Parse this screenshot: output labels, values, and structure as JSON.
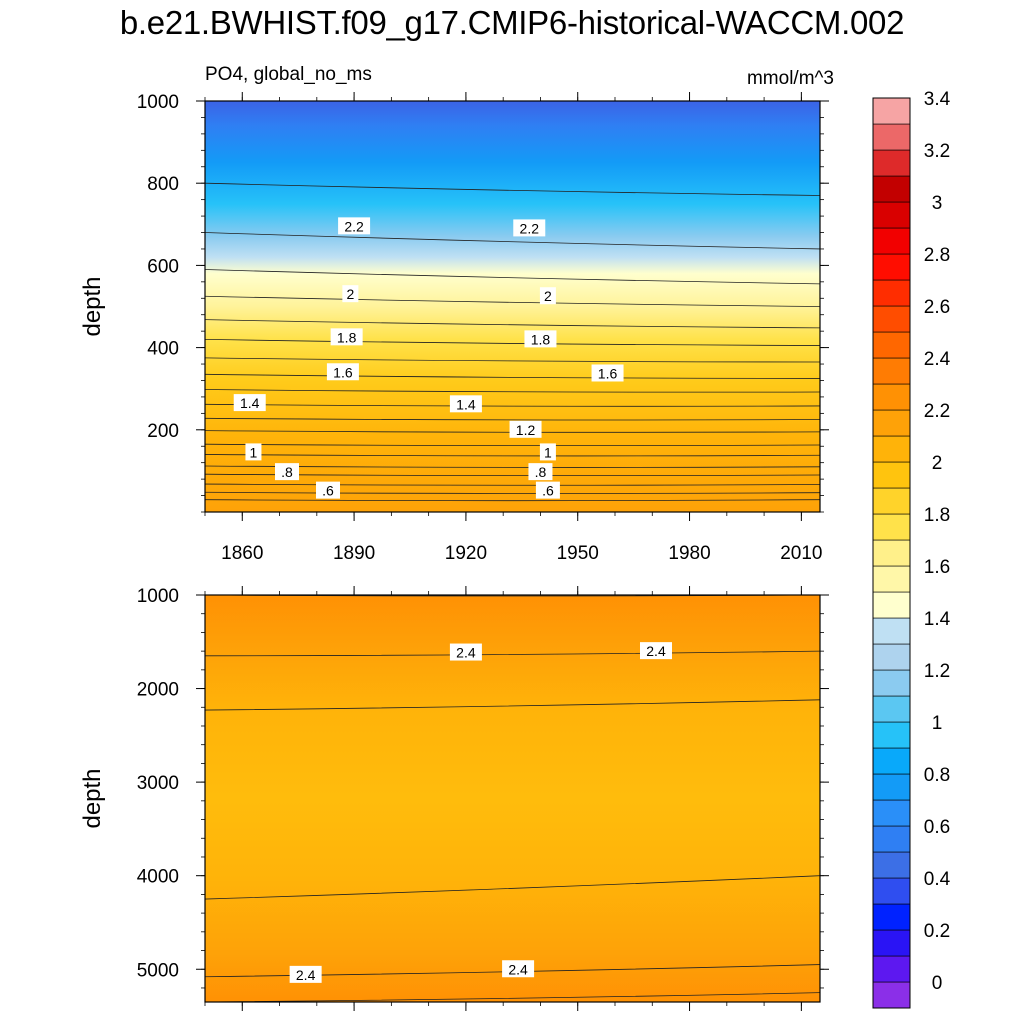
{
  "title": "b.e21.BWHIST.f09_g17.CMIP6-historical-WACCM.002",
  "subtitle": "PO4, global_no_ms",
  "units": "mmol/m^3",
  "chart_data": [
    {
      "type": "contour",
      "panel": "upper",
      "ylabel": "depth",
      "xlabel": "",
      "ylim": [
        1000,
        0
      ],
      "yticks": [
        200,
        400,
        600,
        800,
        1000
      ],
      "xlim": [
        1850,
        2015
      ],
      "xticks": [
        1860,
        1890,
        1920,
        1950,
        1980,
        2010
      ],
      "contours": [
        {
          "level": 0.5,
          "depths": [
            30,
            30
          ]
        },
        {
          "level": 0.6,
          "depths": [
            48,
            47
          ]
        },
        {
          "level": 0.7,
          "depths": [
            68,
            67
          ]
        },
        {
          "level": 0.8,
          "depths": [
            92,
            90
          ]
        },
        {
          "level": 0.9,
          "depths": [
            112,
            110
          ]
        },
        {
          "level": 1.0,
          "depths": [
            140,
            138
          ]
        },
        {
          "level": 1.1,
          "depths": [
            165,
            163
          ]
        },
        {
          "level": 1.2,
          "depths": [
            198,
            195
          ]
        },
        {
          "level": 1.3,
          "depths": [
            228,
            225
          ]
        },
        {
          "level": 1.4,
          "depths": [
            262,
            258
          ]
        },
        {
          "level": 1.5,
          "depths": [
            298,
            292
          ]
        },
        {
          "level": 1.6,
          "depths": [
            335,
            325
          ]
        },
        {
          "level": 1.7,
          "depths": [
            375,
            365
          ]
        },
        {
          "level": 1.8,
          "depths": [
            420,
            405
          ]
        },
        {
          "level": 1.9,
          "depths": [
            468,
            448
          ]
        },
        {
          "level": 2.0,
          "depths": [
            525,
            500
          ]
        },
        {
          "level": 2.1,
          "depths": [
            590,
            555
          ]
        },
        {
          "level": 2.2,
          "depths": [
            680,
            640
          ]
        },
        {
          "level": 2.3,
          "depths": [
            800,
            770
          ]
        }
      ],
      "labels": [
        {
          "text": ".6",
          "year": 1883,
          "depth": 52
        },
        {
          "text": ".6",
          "year": 1942,
          "depth": 52
        },
        {
          "text": ".8",
          "year": 1872,
          "depth": 97
        },
        {
          "text": ".8",
          "year": 1940,
          "depth": 97
        },
        {
          "text": "1",
          "year": 1863,
          "depth": 145
        },
        {
          "text": "1",
          "year": 1942,
          "depth": 145
        },
        {
          "text": "1.2",
          "year": 1936,
          "depth": 200
        },
        {
          "text": "1.4",
          "year": 1862,
          "depth": 265
        },
        {
          "text": "1.4",
          "year": 1920,
          "depth": 262
        },
        {
          "text": "1.6",
          "year": 1887,
          "depth": 340
        },
        {
          "text": "1.6",
          "year": 1958,
          "depth": 337
        },
        {
          "text": "1.8",
          "year": 1888,
          "depth": 425
        },
        {
          "text": "1.8",
          "year": 1940,
          "depth": 420
        },
        {
          "text": "2",
          "year": 1889,
          "depth": 530
        },
        {
          "text": "2",
          "year": 1942,
          "depth": 525
        },
        {
          "text": "2.2",
          "year": 1890,
          "depth": 695
        },
        {
          "text": "2.2",
          "year": 1937,
          "depth": 690
        }
      ]
    },
    {
      "type": "contour",
      "panel": "lower",
      "ylabel": "depth",
      "xlabel": "",
      "ylim": [
        1000,
        5350
      ],
      "yticks": [
        1000,
        2000,
        3000,
        4000,
        5000
      ],
      "xlim": [
        1850,
        2015
      ],
      "xticks": [
        1860,
        1890,
        1920,
        1950,
        1980,
        2010
      ],
      "contours": [
        {
          "level": 2.45,
          "depths": [
            1000,
            1000
          ]
        },
        {
          "level": 2.4,
          "depths": [
            1650,
            1600
          ]
        },
        {
          "level": 2.3,
          "depths": [
            2230,
            2120
          ]
        },
        {
          "level": 2.3,
          "depths": [
            4250,
            4000
          ]
        },
        {
          "level": 2.4,
          "depths": [
            5080,
            4950
          ]
        },
        {
          "level": 2.45,
          "depths": [
            5350,
            5250
          ]
        }
      ],
      "labels": [
        {
          "text": "2.4",
          "year": 1920,
          "depth": 1615
        },
        {
          "text": "2.4",
          "year": 1971,
          "depth": 1600
        },
        {
          "text": "2.4",
          "year": 1877,
          "depth": 5060
        },
        {
          "text": "2.4",
          "year": 1934,
          "depth": 5000
        }
      ]
    }
  ],
  "colorbar": {
    "labels": [
      "0",
      "0.2",
      "0.4",
      "0.6",
      "0.8",
      "1",
      "1.2",
      "1.4",
      "1.6",
      "1.8",
      "2",
      "2.2",
      "2.4",
      "2.6",
      "2.8",
      "3",
      "3.2",
      "3.4"
    ],
    "colors": [
      "#8b2fe8",
      "#5d18f0",
      "#2a14f5",
      "#0022ff",
      "#2f4ef0",
      "#3c6fe6",
      "#2f7ff3",
      "#2a8ff8",
      "#139bf7",
      "#09a9fa",
      "#26c2f8",
      "#5bc7f2",
      "#8bcbf0",
      "#aed3ee",
      "#bfe0f3",
      "#ffffce",
      "#fff7a8",
      "#fff08a",
      "#ffe24a",
      "#ffd32a",
      "#ffc40e",
      "#ffb309",
      "#fea208",
      "#ff9104",
      "#ff7c03",
      "#ff6700",
      "#ff4d00",
      "#ff2d00",
      "#ff0d00",
      "#f20000",
      "#d90000",
      "#c20000",
      "#de2a2a",
      "#ec6868",
      "#f6a4a4"
    ]
  }
}
